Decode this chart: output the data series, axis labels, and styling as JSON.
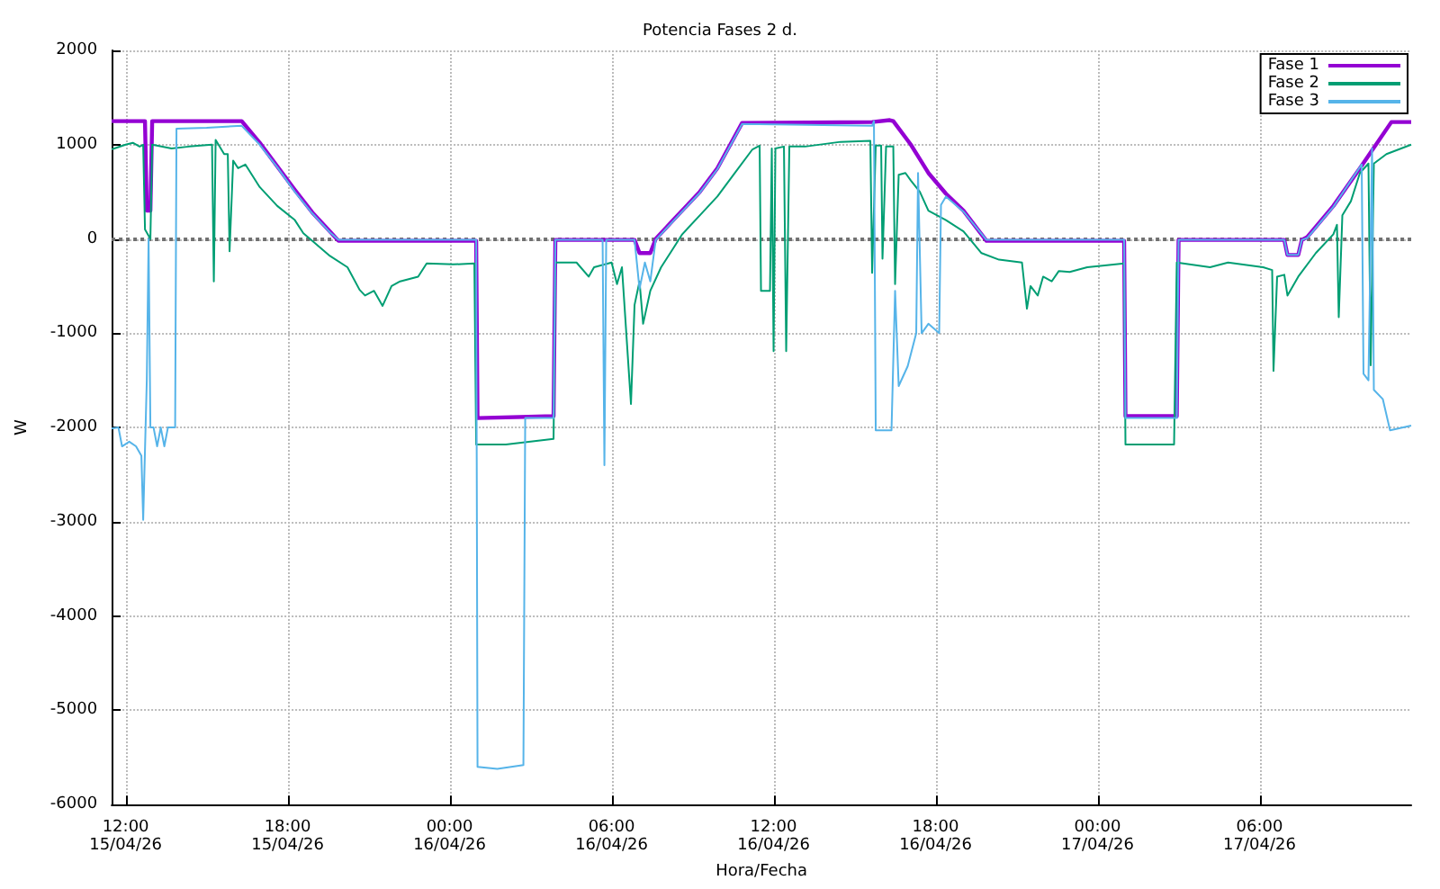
{
  "chart_data": {
    "type": "line",
    "title": "Potencia Fases 2 d.",
    "xlabel": "Hora/Fecha",
    "ylabel": "W",
    "xlim": [
      "--04-15T11:29",
      "--04-17T11:37"
    ],
    "ylim": [
      -6000,
      2000
    ],
    "xticks": [
      {
        "value": "--04-15T12:00",
        "label": "12:00\n15/04/26"
      },
      {
        "value": "--04-15T18:00",
        "label": "18:00\n15/04/26"
      },
      {
        "value": "--04-16T00:00",
        "label": "00:00\n16/04/26"
      },
      {
        "value": "--04-16T06:00",
        "label": "06:00\n16/04/26"
      },
      {
        "value": "--04-16T12:00",
        "label": "12:00\n16/04/26"
      },
      {
        "value": "--04-16T18:00",
        "label": "18:00\n16/04/26"
      },
      {
        "value": "--04-17T00:00",
        "label": "00:00\n17/04/26"
      },
      {
        "value": "--04-17T06:00",
        "label": "06:00\n17/04/26"
      }
    ],
    "yticks": [
      -6000,
      -5000,
      -4000,
      -3000,
      -2000,
      -1000,
      0,
      1000,
      2000
    ],
    "grid": true,
    "legend": "top right",
    "marker": "none",
    "line_style": "solid",
    "ref_lines": [
      {
        "axis": "y",
        "value": 0,
        "label": null,
        "color": "#707070",
        "line_style": "dotted"
      }
    ],
    "series": [
      {
        "name": "Fase 1",
        "color": "#9400d3",
        "x": [
          "--04-15T11:29",
          "--04-15T12:39",
          "--04-15T12:43",
          "--04-15T12:47",
          "--04-15T12:55",
          "--04-15T12:59",
          "--04-15T16:18",
          "--04-15T16:58",
          "--04-15T17:37",
          "--04-15T18:16",
          "--04-15T18:55",
          "--04-15T19:34",
          "--04-15T19:53",
          "--04-16T00:59",
          "--04-16T01:02",
          "--04-16T03:51",
          "--04-16T03:55",
          "--04-16T06:51",
          "--04-16T07:02",
          "--04-16T07:26",
          "--04-16T07:38",
          "--04-16T08:17",
          "--04-16T09:16",
          "--04-16T09:55",
          "--04-16T10:50",
          "--04-16T15:39",
          "--04-16T16:18",
          "--04-16T16:26",
          "--04-16T17:05",
          "--04-16T17:44",
          "--04-16T18:23",
          "--04-16T19:02",
          "--04-16T19:53",
          "--04-17T00:59",
          "--04-17T01:02",
          "--04-17T02:56",
          "--04-17T03:00",
          "--04-17T06:55",
          "--04-17T07:02",
          "--04-17T07:26",
          "--04-17T07:34",
          "--04-17T07:46",
          "--04-17T08:44",
          "--04-17T09:43",
          "--04-17T10:53",
          "--04-17T11:37"
        ],
        "values": [
          1250,
          1250,
          1250,
          300,
          300,
          1250,
          1250,
          1020,
          770,
          520,
          280,
          80,
          -20,
          -20,
          -1900,
          -1880,
          -10,
          -10,
          -150,
          -150,
          0,
          200,
          500,
          750,
          1230,
          1240,
          1260,
          1250,
          1000,
          700,
          480,
          300,
          -20,
          -20,
          -1880,
          -1880,
          -10,
          -10,
          -170,
          -170,
          -10,
          20,
          350,
          750,
          1240,
          1240
        ]
      },
      {
        "name": "Fase 2",
        "color": "#009e73",
        "x": [
          "--04-15T11:29",
          "--04-15T12:00",
          "--04-15T12:16",
          "--04-15T12:31",
          "--04-15T12:39",
          "--04-15T12:43",
          "--04-15T12:55",
          "--04-15T12:59",
          "--04-15T13:42",
          "--04-15T14:21",
          "--04-15T15:12",
          "--04-15T15:16",
          "--04-15T15:20",
          "--04-15T15:39",
          "--04-15T15:47",
          "--04-15T15:51",
          "--04-15T15:59",
          "--04-15T16:10",
          "--04-15T16:26",
          "--04-15T16:58",
          "--04-15T17:37",
          "--04-15T18:16",
          "--04-15T18:35",
          "--04-15T18:55",
          "--04-15T19:34",
          "--04-15T20:13",
          "--04-15T20:40",
          "--04-15T20:52",
          "--04-15T21:12",
          "--04-15T21:31",
          "--04-15T21:51",
          "--04-15T22:10",
          "--04-15T22:50",
          "--04-15T23:09",
          "--04-16T00:08",
          "--04-16T00:55",
          "--04-16T00:59",
          "--04-16T02:05",
          "--04-16T03:51",
          "--04-16T03:55",
          "--04-16T04:42",
          "--04-16T05:09",
          "--04-16T05:21",
          "--04-16T06:00",
          "--04-16T06:12",
          "--04-16T06:23",
          "--04-16T06:43",
          "--04-16T06:51",
          "--04-16T07:02",
          "--04-16T07:10",
          "--04-16T07:26",
          "--04-16T07:50",
          "--04-16T08:17",
          "--04-16T08:37",
          "--04-16T09:16",
          "--04-16T09:55",
          "--04-16T10:34",
          "--04-16T11:13",
          "--04-16T11:29",
          "--04-16T11:32",
          "--04-16T11:52",
          "--04-16T11:56",
          "--04-16T12:00",
          "--04-16T12:04",
          "--04-16T12:23",
          "--04-16T12:28",
          "--04-16T12:35",
          "--04-16T13:10",
          "--04-16T14:29",
          "--04-16T15:35",
          "--04-16T15:39",
          "--04-16T15:47",
          "--04-16T15:59",
          "--04-16T16:02",
          "--04-16T16:10",
          "--04-16T16:26",
          "--04-16T16:30",
          "--04-16T16:38",
          "--04-16T16:53",
          "--04-16T17:05",
          "--04-16T17:25",
          "--04-16T17:44",
          "--04-16T18:23",
          "--04-16T19:02",
          "--04-16T19:42",
          "--04-16T20:21",
          "--04-16T21:12",
          "--04-16T21:23",
          "--04-16T21:31",
          "--04-16T21:47",
          "--04-16T21:59",
          "--04-16T22:18",
          "--04-16T22:34",
          "--04-16T22:58",
          "--04-16T23:37",
          "--04-17T00:16",
          "--04-17T00:59",
          "--04-17T01:02",
          "--04-17T02:50",
          "--04-17T02:56",
          "--04-17T04:10",
          "--04-17T04:50",
          "--04-17T06:08",
          "--04-17T06:28",
          "--04-17T06:31",
          "--04-17T06:39",
          "--04-17T06:55",
          "--04-17T07:02",
          "--04-17T07:26",
          "--04-17T08:05",
          "--04-17T08:44",
          "--04-17T08:52",
          "--04-17T08:56",
          "--04-17T09:04",
          "--04-17T09:23",
          "--04-17T09:43",
          "--04-17T10:02",
          "--04-17T10:07",
          "--04-17T10:14",
          "--04-17T10:42",
          "--04-17T11:37"
        ],
        "values": [
          950,
          1000,
          1020,
          980,
          1000,
          100,
          0,
          1000,
          960,
          980,
          1000,
          -450,
          1050,
          900,
          900,
          -130,
          830,
          750,
          790,
          550,
          350,
          200,
          60,
          -20,
          -180,
          -300,
          -540,
          -600,
          -550,
          -710,
          -500,
          -450,
          -400,
          -260,
          -270,
          -260,
          -2180,
          -2180,
          -2120,
          -250,
          -250,
          -400,
          -300,
          -250,
          -480,
          -300,
          -1750,
          -700,
          -450,
          -900,
          -550,
          -300,
          -100,
          50,
          250,
          450,
          700,
          950,
          990,
          -550,
          -550,
          960,
          -1190,
          960,
          980,
          -1190,
          980,
          980,
          1030,
          1040,
          -360,
          990,
          990,
          -210,
          980,
          980,
          -480,
          680,
          700,
          620,
          500,
          300,
          200,
          80,
          -150,
          -220,
          -250,
          -740,
          -500,
          -600,
          -400,
          -450,
          -340,
          -350,
          -300,
          -280,
          -260,
          -2180,
          -2180,
          -250,
          -300,
          -250,
          -300,
          -330,
          -1400,
          -400,
          -380,
          -600,
          -400,
          -150,
          50,
          150,
          -830,
          250,
          400,
          700,
          800,
          -1340,
          800,
          900,
          1000
        ]
      },
      {
        "name": "Fase 3",
        "color": "#56b4e9",
        "x": [
          "--04-15T11:29",
          "--04-15T11:44",
          "--04-15T11:52",
          "--04-15T12:08",
          "--04-15T12:23",
          "--04-15T12:35",
          "--04-15T12:39",
          "--04-15T12:47",
          "--04-15T12:51",
          "--04-15T12:55",
          "--04-15T13:02",
          "--04-15T13:10",
          "--04-15T13:18",
          "--04-15T13:26",
          "--04-15T13:34",
          "--04-15T13:50",
          "--04-15T13:53",
          "--04-15T15:00",
          "--04-15T16:18",
          "--04-15T16:58",
          "--04-15T17:37",
          "--04-15T18:16",
          "--04-15T18:55",
          "--04-15T19:34",
          "--04-15T19:53",
          "--04-16T00:59",
          "--04-16T01:02",
          "--04-16T01:46",
          "--04-16T02:44",
          "--04-16T02:48",
          "--04-16T03:51",
          "--04-16T03:55",
          "--04-16T05:40",
          "--04-16T05:44",
          "--04-16T05:48",
          "--04-16T06:51",
          "--04-16T07:02",
          "--04-16T07:14",
          "--04-16T07:26",
          "--04-16T07:38",
          "--04-16T08:17",
          "--04-16T09:16",
          "--04-16T09:55",
          "--04-16T10:50",
          "--04-16T15:39",
          "--04-16T15:43",
          "--04-16T15:47",
          "--04-16T16:22",
          "--04-16T16:30",
          "--04-16T16:38",
          "--04-16T16:58",
          "--04-16T17:17",
          "--04-16T17:21",
          "--04-16T17:29",
          "--04-16T17:44",
          "--04-16T18:08",
          "--04-16T18:12",
          "--04-16T18:23",
          "--04-16T19:02",
          "--04-16T19:53",
          "--04-17T00:59",
          "--04-17T01:02",
          "--04-17T02:56",
          "--04-17T03:00",
          "--04-17T06:55",
          "--04-17T07:02",
          "--04-17T07:26",
          "--04-17T07:34",
          "--04-17T07:46",
          "--04-17T08:44",
          "--04-17T09:47",
          "--04-17T09:51",
          "--04-17T10:02",
          "--04-17T10:10",
          "--04-17T10:14",
          "--04-17T10:34",
          "--04-17T10:50",
          "--04-17T11:37"
        ],
        "values": [
          -2010,
          -2000,
          -2200,
          -2150,
          -2200,
          -2300,
          -2980,
          -1500,
          0,
          -2000,
          -2000,
          -2200,
          -2000,
          -2200,
          -2000,
          -2000,
          1170,
          1180,
          1200,
          1000,
          760,
          500,
          270,
          70,
          -10,
          -10,
          -5600,
          -5620,
          -5580,
          -1900,
          -1900,
          -10,
          -10,
          -2400,
          -10,
          -10,
          -530,
          -250,
          -450,
          -10,
          190,
          490,
          740,
          1220,
          1200,
          1250,
          -2030,
          -2030,
          -550,
          -1560,
          -1350,
          -1000,
          700,
          -1000,
          -900,
          -1000,
          360,
          450,
          290,
          -10,
          -10,
          -1900,
          -1900,
          -10,
          -10,
          -170,
          -170,
          -10,
          10,
          340,
          790,
          -1430,
          -1500,
          960,
          -1600,
          -1700,
          -2030,
          -1980
        ]
      }
    ]
  }
}
